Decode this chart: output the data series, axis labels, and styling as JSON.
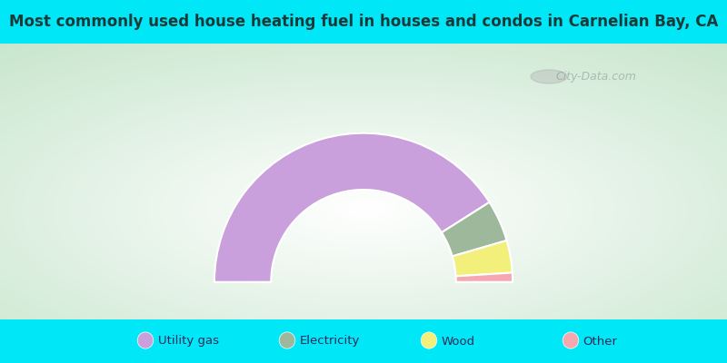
{
  "title": "Most commonly used house heating fuel in houses and condos in Carnelian Bay, CA",
  "slices": [
    {
      "label": "Utility gas",
      "value": 82,
      "color": "#c9a0dc"
    },
    {
      "label": "Electricity",
      "value": 9,
      "color": "#9db89a"
    },
    {
      "label": "Wood",
      "value": 7,
      "color": "#f2f07a"
    },
    {
      "label": "Other",
      "value": 2,
      "color": "#f4a8b0"
    }
  ],
  "title_color": "#1a3a3a",
  "watermark": "City-Data.com",
  "figsize": [
    8,
    4
  ],
  "dpi": 100,
  "title_bg": "#00e8f8",
  "legend_bg": "#00e8f8",
  "chart_bg_center": "#ffffff",
  "chart_bg_edge": "#b8d8b8"
}
